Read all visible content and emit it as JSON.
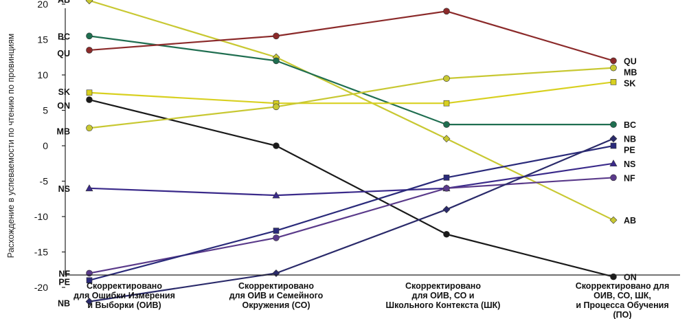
{
  "chart_data": {
    "type": "line",
    "title": "",
    "ylabel": "Расхождение в успеваемости по чтению по провинциям",
    "xlabel": "",
    "ylim": [
      -25,
      25
    ],
    "yticks": [
      20,
      15,
      10,
      5,
      0,
      -5,
      -10,
      -15,
      -20
    ],
    "categories": [
      [
        "Скорректировано",
        "для Ошибки Измерения",
        "и Выборки (ОИВ)"
      ],
      [
        "Скорректировано",
        "для ОИВ и Семейного",
        "Окружения (СО)"
      ],
      [
        "Скорректировано",
        "для ОИВ, СО и",
        "Школьного Контекста (ШК)"
      ],
      [
        "Скорректировано для",
        "ОИВ, СО, ШК,",
        "и Процесса Обучения",
        "(ПО)"
      ]
    ],
    "grid": false,
    "legend": "inline labels at both ends",
    "series": [
      {
        "name": "AB",
        "color": "#c8c832",
        "marker": "diamond",
        "values": [
          20.5,
          12.5,
          1.0,
          -10.5
        ]
      },
      {
        "name": "BC",
        "color": "#1f6e50",
        "marker": "circle",
        "values": [
          15.5,
          12.0,
          3.0,
          3.0
        ]
      },
      {
        "name": "QU",
        "color": "#8b2a2a",
        "marker": "circle",
        "values": [
          13.5,
          15.5,
          19.0,
          12.0
        ]
      },
      {
        "name": "SK",
        "color": "#d8d020",
        "marker": "square",
        "values": [
          7.5,
          6.0,
          6.0,
          9.0
        ]
      },
      {
        "name": "ON",
        "color": "#1a1a1a",
        "marker": "circle",
        "values": [
          6.5,
          0.0,
          -12.5,
          -18.5
        ]
      },
      {
        "name": "MB",
        "color": "#c8c832",
        "marker": "circle",
        "values": [
          2.5,
          5.5,
          9.5,
          11.0
        ]
      },
      {
        "name": "NS",
        "color": "#3a2a8a",
        "marker": "triangle",
        "values": [
          -6.0,
          -7.0,
          -6.0,
          -2.5
        ]
      },
      {
        "name": "NF",
        "color": "#5a3a8a",
        "marker": "circle",
        "values": [
          -18.0,
          -13.0,
          -6.0,
          -4.5
        ]
      },
      {
        "name": "PE",
        "color": "#2a2a7a",
        "marker": "square",
        "values": [
          -19.0,
          -12.0,
          -4.5,
          0.0
        ]
      },
      {
        "name": "NB",
        "color": "#2a2a6a",
        "marker": "diamond",
        "values": [
          -22.0,
          -18.0,
          -9.0,
          1.0
        ]
      }
    ]
  }
}
